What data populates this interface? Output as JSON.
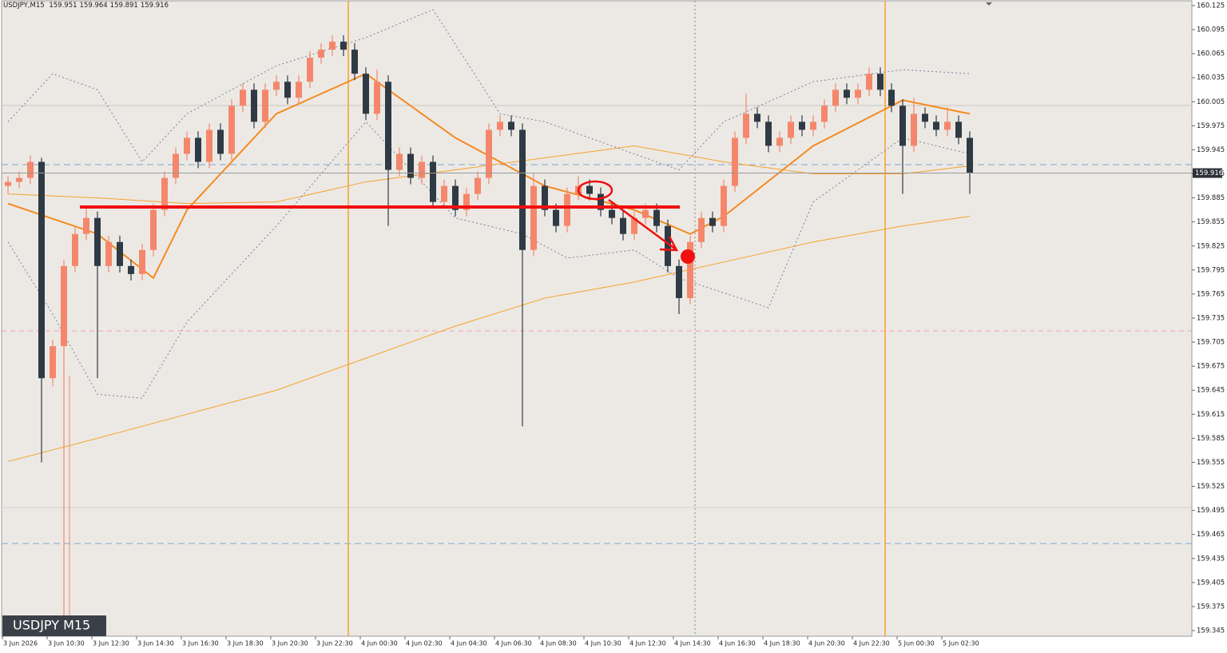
{
  "chart_data": {
    "type": "candlestick",
    "symbol": "USDJPY,M15",
    "quote": [
      159.951,
      159.964,
      159.891,
      159.916
    ],
    "badge": "USDJPY M15",
    "up_color": "#f4876b",
    "down_color": "#2f3a44",
    "ylim": [
      159.337,
      160.132
    ],
    "yticks": [
      160.125,
      160.095,
      160.065,
      160.035,
      160.005,
      159.975,
      159.945,
      159.915,
      159.885,
      159.855,
      159.825,
      159.795,
      159.765,
      159.735,
      159.705,
      159.675,
      159.645,
      159.615,
      159.585,
      159.555,
      159.525,
      159.495,
      159.465,
      159.435,
      159.405,
      159.375,
      159.345
    ],
    "last": 159.916,
    "categories": [
      "3 Jun 2026",
      "3 Jun 10:30",
      "3 Jun 12:30",
      "3 Jun 14:30",
      "3 Jun 16:30",
      "3 Jun 18:30",
      "3 Jun 20:30",
      "3 Jun 22:30",
      "4 Jun 00:30",
      "4 Jun 02:30",
      "4 Jun 04:30",
      "4 Jun 06:30",
      "4 Jun 08:30",
      "4 Jun 10:30",
      "4 Jun 12:30",
      "4 Jun 14:30",
      "4 Jun 16:30",
      "4 Jun 18:30",
      "4 Jun 20:30",
      "4 Jun 22:30",
      "5 Jun 00:30",
      "5 Jun 02:30"
    ],
    "ohlc": [
      [
        159.9,
        159.912,
        159.89,
        159.905
      ],
      [
        159.905,
        159.918,
        159.897,
        159.91
      ],
      [
        159.91,
        159.938,
        159.902,
        159.93
      ],
      [
        159.93,
        159.935,
        159.555,
        159.66
      ],
      [
        159.66,
        159.708,
        159.65,
        159.7
      ],
      [
        159.7,
        159.808,
        159.36,
        159.8
      ],
      [
        159.8,
        159.848,
        159.792,
        159.84
      ],
      [
        159.84,
        159.875,
        159.832,
        159.86
      ],
      [
        159.86,
        159.868,
        159.66,
        159.8
      ],
      [
        159.8,
        159.838,
        159.792,
        159.83
      ],
      [
        159.83,
        159.838,
        159.792,
        159.8
      ],
      [
        159.8,
        159.808,
        159.782,
        159.79
      ],
      [
        159.79,
        159.828,
        159.782,
        159.82
      ],
      [
        159.82,
        159.878,
        159.812,
        159.87
      ],
      [
        159.87,
        159.918,
        159.862,
        159.91
      ],
      [
        159.91,
        159.948,
        159.902,
        159.94
      ],
      [
        159.94,
        159.968,
        159.932,
        159.96
      ],
      [
        159.96,
        159.968,
        159.922,
        159.93
      ],
      [
        159.93,
        159.978,
        159.922,
        159.97
      ],
      [
        159.97,
        159.978,
        159.932,
        159.94
      ],
      [
        159.94,
        160.008,
        159.932,
        160.0
      ],
      [
        160.0,
        160.028,
        159.992,
        160.02
      ],
      [
        160.02,
        160.028,
        159.972,
        159.98
      ],
      [
        159.98,
        160.028,
        159.972,
        160.02
      ],
      [
        160.02,
        160.038,
        160.012,
        160.03
      ],
      [
        160.03,
        160.038,
        160.002,
        160.01
      ],
      [
        160.01,
        160.038,
        160.002,
        160.03
      ],
      [
        160.03,
        160.068,
        160.022,
        160.06
      ],
      [
        160.06,
        160.078,
        160.052,
        160.07
      ],
      [
        160.07,
        160.088,
        160.062,
        160.08
      ],
      [
        160.08,
        160.088,
        160.062,
        160.07
      ],
      [
        160.07,
        160.078,
        160.032,
        160.04
      ],
      [
        160.04,
        160.048,
        159.982,
        159.99
      ],
      [
        159.99,
        160.045,
        159.982,
        160.03
      ],
      [
        160.03,
        160.038,
        159.85,
        159.92
      ],
      [
        159.92,
        159.948,
        159.912,
        159.94
      ],
      [
        159.94,
        159.948,
        159.902,
        159.91
      ],
      [
        159.91,
        159.938,
        159.902,
        159.93
      ],
      [
        159.93,
        159.938,
        159.872,
        159.88
      ],
      [
        159.88,
        159.908,
        159.872,
        159.9
      ],
      [
        159.9,
        159.908,
        159.862,
        159.87
      ],
      [
        159.87,
        159.898,
        159.862,
        159.89
      ],
      [
        159.89,
        159.918,
        159.882,
        159.91
      ],
      [
        159.91,
        159.978,
        159.902,
        159.97
      ],
      [
        159.97,
        159.988,
        159.962,
        159.98
      ],
      [
        159.98,
        159.988,
        159.962,
        159.97
      ],
      [
        159.97,
        159.978,
        159.6,
        159.82
      ],
      [
        159.82,
        159.915,
        159.812,
        159.9
      ],
      [
        159.9,
        159.908,
        159.862,
        159.87
      ],
      [
        159.87,
        159.878,
        159.842,
        159.85
      ],
      [
        159.85,
        159.898,
        159.842,
        159.89
      ],
      [
        159.89,
        159.912,
        159.882,
        159.9
      ],
      [
        159.9,
        159.908,
        159.882,
        159.89
      ],
      [
        159.89,
        159.898,
        159.862,
        159.87
      ],
      [
        159.87,
        159.878,
        159.852,
        159.86
      ],
      [
        159.86,
        159.868,
        159.832,
        159.84
      ],
      [
        159.84,
        159.868,
        159.832,
        159.86
      ],
      [
        159.86,
        159.878,
        159.852,
        159.87
      ],
      [
        159.87,
        159.878,
        159.842,
        159.85
      ],
      [
        159.85,
        159.858,
        159.792,
        159.8
      ],
      [
        159.8,
        159.808,
        159.74,
        159.76
      ],
      [
        159.76,
        159.838,
        159.752,
        159.83
      ],
      [
        159.83,
        159.868,
        159.822,
        159.86
      ],
      [
        159.86,
        159.868,
        159.842,
        159.85
      ],
      [
        159.85,
        159.908,
        159.842,
        159.9
      ],
      [
        159.9,
        159.968,
        159.892,
        159.96
      ],
      [
        159.96,
        160.015,
        159.952,
        159.99
      ],
      [
        159.99,
        159.998,
        159.972,
        159.98
      ],
      [
        159.98,
        159.988,
        159.942,
        159.95
      ],
      [
        159.95,
        159.968,
        159.942,
        159.96
      ],
      [
        159.96,
        159.988,
        159.952,
        159.98
      ],
      [
        159.98,
        159.988,
        159.962,
        159.97
      ],
      [
        159.97,
        159.988,
        159.962,
        159.98
      ],
      [
        159.98,
        160.008,
        159.972,
        160.0
      ],
      [
        160.0,
        160.028,
        159.992,
        160.02
      ],
      [
        160.02,
        160.028,
        160.002,
        160.01
      ],
      [
        160.01,
        160.028,
        160.002,
        160.02
      ],
      [
        160.02,
        160.048,
        160.012,
        160.04
      ],
      [
        160.04,
        160.048,
        160.012,
        160.02
      ],
      [
        160.02,
        160.028,
        159.992,
        160.0
      ],
      [
        160.0,
        160.008,
        159.89,
        159.95
      ],
      [
        159.95,
        160.01,
        159.942,
        159.99
      ],
      [
        159.99,
        159.998,
        159.972,
        159.98
      ],
      [
        159.98,
        159.988,
        159.962,
        159.97
      ],
      [
        159.97,
        159.998,
        159.962,
        159.98
      ],
      [
        159.98,
        159.988,
        159.952,
        159.96
      ],
      [
        159.96,
        159.968,
        159.89,
        159.916
      ]
    ],
    "overlays": [
      {
        "color": "#f7a12a",
        "thick": false,
        "dash": false,
        "x": [
          0,
          8,
          16,
          24,
          32,
          40,
          48,
          56,
          64,
          72,
          80,
          86
        ],
        "values": [
          159.556,
          159.585,
          159.615,
          159.645,
          159.685,
          159.725,
          159.76,
          159.78,
          159.805,
          159.83,
          159.85,
          159.862
        ]
      },
      {
        "color": "#f7a12a",
        "thick": false,
        "dash": false,
        "x": [
          0,
          8,
          16,
          24,
          32,
          40,
          48,
          56,
          64,
          72,
          80,
          86
        ],
        "values": [
          159.89,
          159.885,
          159.878,
          159.88,
          159.905,
          159.92,
          159.935,
          159.95,
          159.93,
          159.915,
          159.915,
          159.925
        ]
      },
      {
        "color": "#f58a1f",
        "thick": true,
        "dash": false,
        "x": [
          0,
          8,
          13,
          16,
          24,
          32,
          40,
          48,
          56,
          61,
          64,
          72,
          80,
          86
        ],
        "values": [
          159.878,
          159.84,
          159.785,
          159.87,
          159.99,
          160.04,
          159.96,
          159.9,
          159.87,
          159.84,
          159.862,
          159.95,
          160.007,
          159.99
        ]
      },
      {
        "color": "#7a7f9a",
        "thick": false,
        "dash": true,
        "x": [
          0,
          4,
          8,
          12,
          16,
          24,
          32,
          38,
          44,
          48,
          54,
          60,
          64,
          72,
          80,
          86
        ],
        "values": [
          159.98,
          160.04,
          160.02,
          159.93,
          159.99,
          160.05,
          160.085,
          160.12,
          159.99,
          159.98,
          159.95,
          159.92,
          159.98,
          160.03,
          160.045,
          160.04
        ]
      },
      {
        "color": "#7a7f9a",
        "thick": false,
        "dash": true,
        "x": [
          0,
          4,
          8,
          12,
          16,
          24,
          32,
          40,
          46,
          50,
          56,
          60,
          68,
          72,
          80,
          86
        ],
        "values": [
          159.83,
          159.74,
          159.64,
          159.635,
          159.73,
          159.85,
          159.98,
          159.86,
          159.84,
          159.81,
          159.82,
          159.785,
          159.748,
          159.88,
          159.96,
          159.94
        ]
      }
    ]
  }
}
